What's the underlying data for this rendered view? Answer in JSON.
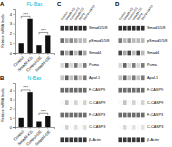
{
  "chart_data": [
    {
      "type": "bar",
      "title": "FL-Bax",
      "title_color": "#00bcd4",
      "categories": [
        "Control",
        "Smad4-KD",
        "Control-OE",
        "Smad4-OE"
      ],
      "values": [
        1.0,
        3.5,
        0.8,
        1.8
      ],
      "color": "#111111",
      "ylabel": "Relative mRNA levels",
      "ylim": [
        0,
        4.5
      ],
      "yticks": [
        0,
        1,
        2,
        3,
        4
      ],
      "grid": false,
      "annotations": [
        {
          "text": "A"
        },
        {
          "x1": "Control",
          "x2": "Smad4-KD",
          "y": 3.75,
          "text": "***"
        },
        {
          "x1": "Control-OE",
          "x2": "Smad4-OE",
          "y": 2.1,
          "text": "***"
        }
      ]
    },
    {
      "type": "bar",
      "title": "N-Bax",
      "title_color": "#00bcd4",
      "categories": [
        "Control",
        "Smad4-KD",
        "Control-OE",
        "Smad4-OE"
      ],
      "values": [
        1.0,
        3.8,
        0.6,
        1.2
      ],
      "color": "#111111",
      "ylabel": "Relative mRNA levels",
      "ylim": [
        0,
        4.8
      ],
      "yticks": [
        0,
        1,
        2,
        3,
        4
      ],
      "grid": false,
      "annotations": [
        {
          "text": "B"
        },
        {
          "x1": "Control",
          "x2": "Smad4-KD",
          "y": 4.05,
          "text": "***"
        },
        {
          "x1": "Control-OE",
          "x2": "Smad4-OE",
          "y": 1.5,
          "text": "***"
        }
      ]
    },
    {
      "type": "heatmap",
      "annotations": [
        {
          "text": "C"
        }
      ],
      "categories": [
        "Control",
        "Smad4-KD",
        "Control-OE",
        "Smad4-OE",
        "BMP4",
        "BMP4+S4KD"
      ],
      "rows": [
        "Smad1/5/8",
        "pSmad1/5/8",
        "Smad4",
        "Puma",
        "Apaf-1",
        "F-CASP9",
        "C-CASP9",
        "F-CASP3",
        "C-CASP3",
        "β-Actin"
      ],
      "values": [
        [
          0.85,
          0.85,
          0.85,
          0.85,
          0.85,
          0.85
        ],
        [
          0.65,
          0.45,
          0.55,
          0.45,
          0.38,
          0.38
        ],
        [
          0.75,
          0.45,
          0.78,
          0.38,
          0.75,
          0.45
        ],
        [
          0.25,
          0.72,
          0.25,
          0.62,
          0.25,
          0.6
        ],
        [
          0.35,
          0.7,
          0.35,
          0.62,
          0.35,
          0.6
        ],
        [
          0.65,
          0.65,
          0.65,
          0.65,
          0.65,
          0.65
        ],
        [
          0.05,
          0.38,
          0.05,
          0.28,
          0.05,
          0.28
        ],
        [
          0.65,
          0.65,
          0.65,
          0.65,
          0.65,
          0.65
        ],
        [
          0.03,
          0.28,
          0.03,
          0.22,
          0.03,
          0.22
        ],
        [
          0.82,
          0.82,
          0.82,
          0.82,
          0.82,
          0.82
        ]
      ]
    },
    {
      "type": "heatmap",
      "annotations": [
        {
          "text": "D"
        }
      ],
      "categories": [
        "Control",
        "Smad4-KD",
        "Control-OE",
        "Smad4-OE",
        "BMP4",
        "BMP4+S4KD"
      ],
      "rows": [
        "Smad1/5/8",
        "pSmad1/5/8",
        "Smad4",
        "Puma",
        "Apaf-1",
        "F-CASP9",
        "C-CASP9",
        "F-CASP3",
        "C-CASP3",
        "β-Actin"
      ],
      "values": [
        [
          0.85,
          0.85,
          0.85,
          0.85,
          0.85,
          0.85
        ],
        [
          0.6,
          0.38,
          0.5,
          0.38,
          0.38,
          0.38
        ],
        [
          0.78,
          0.45,
          0.78,
          0.38,
          0.78,
          0.38
        ],
        [
          0.25,
          0.68,
          0.25,
          0.6,
          0.25,
          0.6
        ],
        [
          0.35,
          0.68,
          0.35,
          0.6,
          0.35,
          0.6
        ],
        [
          0.65,
          0.65,
          0.65,
          0.65,
          0.65,
          0.65
        ],
        [
          0.05,
          0.35,
          0.05,
          0.28,
          0.05,
          0.28
        ],
        [
          0.65,
          0.65,
          0.65,
          0.65,
          0.65,
          0.65
        ],
        [
          0.03,
          0.25,
          0.03,
          0.2,
          0.03,
          0.2
        ],
        [
          0.82,
          0.82,
          0.82,
          0.82,
          0.82,
          0.82
        ]
      ]
    }
  ]
}
